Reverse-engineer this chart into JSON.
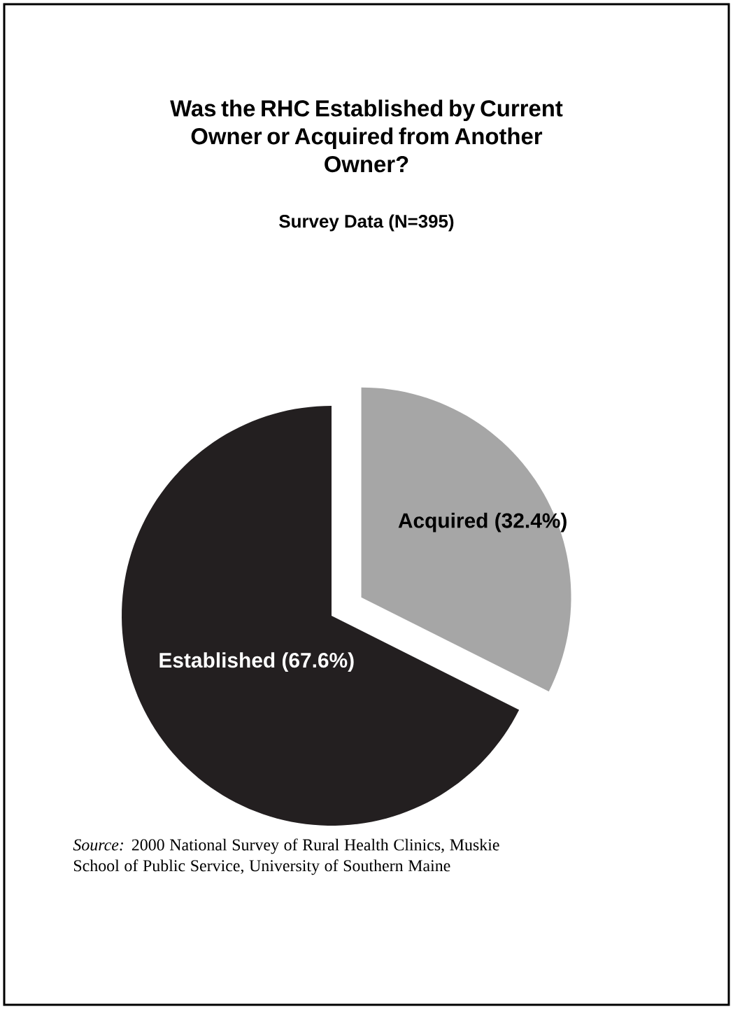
{
  "chart_data": {
    "type": "pie",
    "title": "Was the RHC Established by Current Owner or Acquired from Another Owner?",
    "subtitle": "Survey Data (N=395)",
    "categories": [
      "Acquired (32.4%)",
      "Established (67.6%)"
    ],
    "values": [
      32.4,
      67.6
    ],
    "colors": [
      "#a6a6a6",
      "#231f20"
    ],
    "annotations": [
      "*Source:* 2000 National Survey of Rural Health Clinics, Muskie School of Public Service, University of Southern Maine"
    ]
  }
}
